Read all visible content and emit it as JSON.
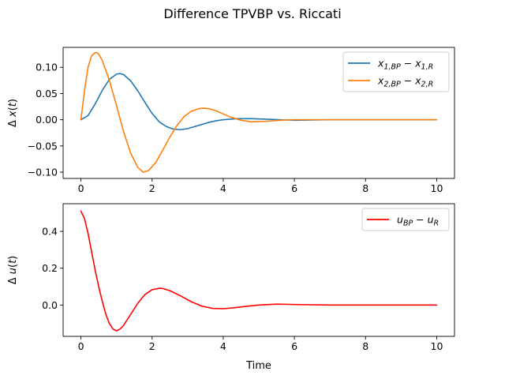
{
  "figure": {
    "title": "Difference TPVBP vs. Riccati"
  },
  "chart_data": [
    {
      "type": "line",
      "title": "",
      "xlabel": "",
      "ylabel_symbol": "Δ x(t)",
      "xlim": [
        -0.5,
        10.5
      ],
      "ylim": [
        -0.112,
        0.138
      ],
      "xticks": [
        0,
        2,
        4,
        6,
        8,
        10
      ],
      "yticks": [
        -0.1,
        -0.05,
        0.0,
        0.05,
        0.1
      ],
      "xtick_labels": [
        "0",
        "2",
        "4",
        "6",
        "8",
        "10"
      ],
      "ytick_labels": [
        "−0.10",
        "−0.05",
        "0.00",
        "0.05",
        "0.10"
      ],
      "legend_position": "top-right",
      "grid": false,
      "series": [
        {
          "name": "x1,BP − x1,R",
          "color": "#1f77b4",
          "x": [
            0,
            0.2,
            0.4,
            0.6,
            0.8,
            1.0,
            1.1,
            1.2,
            1.4,
            1.6,
            1.8,
            2.0,
            2.2,
            2.4,
            2.6,
            2.8,
            3.0,
            3.2,
            3.4,
            3.6,
            3.8,
            4.0,
            4.4,
            4.8,
            5.2,
            5.6,
            6.0,
            7.0,
            8.0,
            9.0,
            10.0
          ],
          "y": [
            0.0,
            0.008,
            0.03,
            0.056,
            0.077,
            0.087,
            0.088,
            0.086,
            0.074,
            0.055,
            0.033,
            0.012,
            -0.004,
            -0.013,
            -0.018,
            -0.019,
            -0.017,
            -0.013,
            -0.009,
            -0.005,
            -0.002,
            0.0,
            0.002,
            0.002,
            0.001,
            0.0,
            -0.001,
            0.0,
            0.0,
            0.0,
            0.0
          ]
        },
        {
          "name": "x2,BP − x2,R",
          "color": "#ff7f0e",
          "x": [
            0,
            0.1,
            0.2,
            0.3,
            0.4,
            0.45,
            0.5,
            0.6,
            0.8,
            1.0,
            1.2,
            1.4,
            1.6,
            1.75,
            1.9,
            2.1,
            2.3,
            2.5,
            2.7,
            2.9,
            3.1,
            3.3,
            3.45,
            3.6,
            3.8,
            4.0,
            4.2,
            4.5,
            4.8,
            5.2,
            5.6,
            6.0,
            7.0,
            8.0,
            9.0,
            10.0
          ],
          "y": [
            0.0,
            0.055,
            0.1,
            0.122,
            0.128,
            0.128,
            0.125,
            0.113,
            0.075,
            0.027,
            -0.023,
            -0.064,
            -0.091,
            -0.1,
            -0.097,
            -0.082,
            -0.058,
            -0.033,
            -0.011,
            0.006,
            0.016,
            0.021,
            0.022,
            0.021,
            0.017,
            0.011,
            0.005,
            -0.001,
            -0.004,
            -0.003,
            -0.001,
            0.0,
            0.0,
            0.0,
            0.0,
            0.0
          ]
        }
      ]
    },
    {
      "type": "line",
      "title": "",
      "xlabel": "Time",
      "ylabel_symbol": "Δ u(t)",
      "xlim": [
        -0.5,
        10.5
      ],
      "ylim": [
        -0.17,
        0.55
      ],
      "xticks": [
        0,
        2,
        4,
        6,
        8,
        10
      ],
      "yticks": [
        0.0,
        0.2,
        0.4
      ],
      "xtick_labels": [
        "0",
        "2",
        "4",
        "6",
        "8",
        "10"
      ],
      "ytick_labels": [
        "0.0",
        "0.2",
        "0.4"
      ],
      "legend_position": "top-right",
      "grid": false,
      "series": [
        {
          "name": "uBP − uR",
          "color": "#ff0000",
          "x": [
            0,
            0.1,
            0.2,
            0.3,
            0.4,
            0.5,
            0.6,
            0.7,
            0.8,
            0.9,
            1.0,
            1.1,
            1.2,
            1.4,
            1.6,
            1.8,
            2.0,
            2.2,
            2.3,
            2.5,
            2.8,
            3.1,
            3.4,
            3.7,
            4.0,
            4.3,
            4.6,
            5.0,
            5.5,
            6.0,
            7.0,
            8.0,
            9.0,
            10.0
          ],
          "y": [
            0.51,
            0.47,
            0.39,
            0.29,
            0.19,
            0.1,
            0.02,
            -0.05,
            -0.1,
            -0.13,
            -0.14,
            -0.13,
            -0.11,
            -0.05,
            0.01,
            0.057,
            0.083,
            0.091,
            0.09,
            0.078,
            0.05,
            0.018,
            -0.006,
            -0.018,
            -0.02,
            -0.015,
            -0.008,
            0.0,
            0.005,
            0.003,
            0.0,
            0.0,
            0.0,
            0.0
          ]
        }
      ]
    }
  ]
}
